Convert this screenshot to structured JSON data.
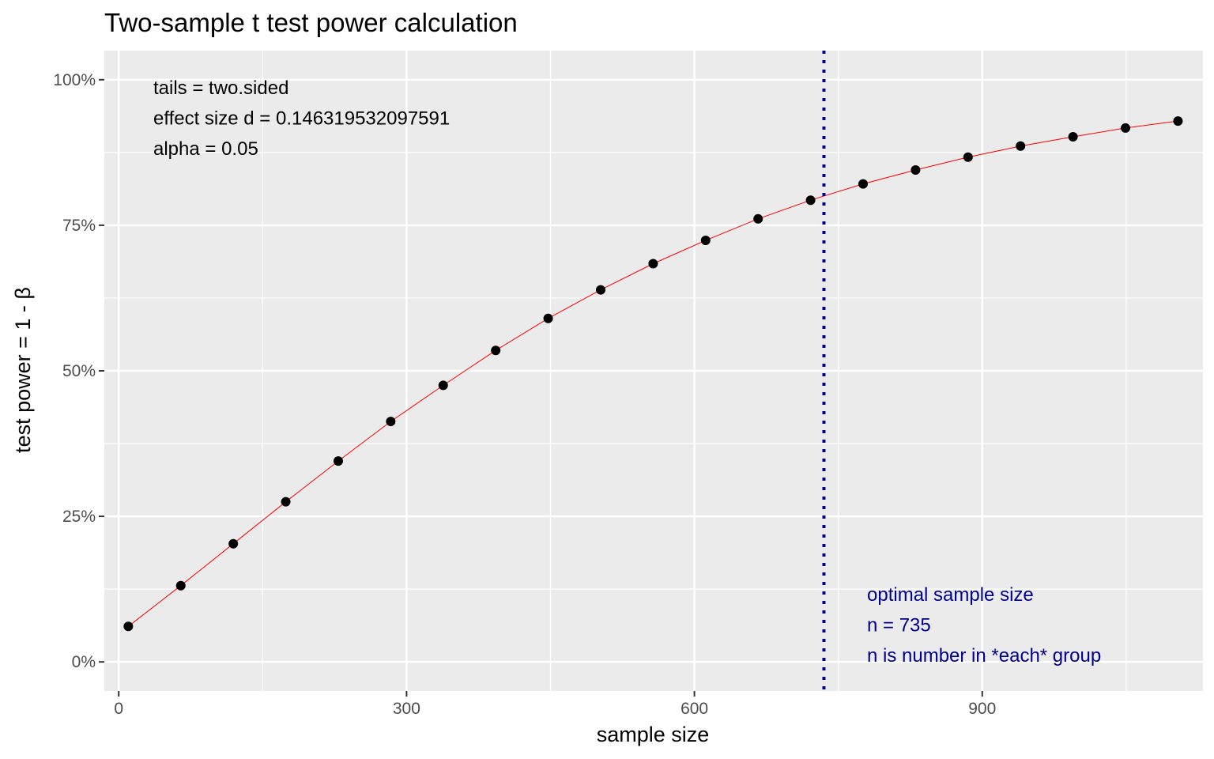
{
  "chart_data": {
    "type": "line",
    "title": "Two-sample t test power calculation",
    "xlabel": "sample size",
    "ylabel": "test power = 1 - β",
    "xlim": [
      -15,
      1130
    ],
    "ylim": [
      -0.05,
      1.05
    ],
    "x_ticks": [
      0,
      300,
      600,
      900
    ],
    "x_tick_labels": [
      "0",
      "300",
      "600",
      "900"
    ],
    "y_ticks": [
      0,
      0.25,
      0.5,
      0.75,
      1.0
    ],
    "y_tick_labels": [
      "0%",
      "25%",
      "50%",
      "75%",
      "100%"
    ],
    "grid": true,
    "series": [
      {
        "x": [
          10,
          64.7,
          119.4,
          174.1,
          228.8,
          283.5,
          338.2,
          392.9,
          447.6,
          502.3,
          557,
          611.7,
          666.4,
          721.1,
          775.8,
          830.5,
          885.2,
          939.9,
          994.6,
          1049.3,
          1104
        ],
        "y": [
          0.061,
          0.131,
          0.203,
          0.275,
          0.345,
          0.413,
          0.475,
          0.535,
          0.59,
          0.639,
          0.684,
          0.724,
          0.761,
          0.793,
          0.821,
          0.845,
          0.867,
          0.886,
          0.902,
          0.917,
          0.929
        ],
        "line_color": "#ff0000",
        "point_color": "#000000"
      }
    ],
    "vline": {
      "x": 735,
      "color": "#00008b",
      "style": "dotted"
    },
    "annotations": {
      "params": [
        "tails = two.sided",
        "effect size d = 0.146319532097591",
        "alpha = 0.05"
      ],
      "optimal": [
        "optimal sample size",
        "n = 735",
        "n is number in *each* group"
      ],
      "optimal_color": "#00008b"
    },
    "panel_background": "#ebebeb",
    "grid_color": "#ffffff"
  }
}
